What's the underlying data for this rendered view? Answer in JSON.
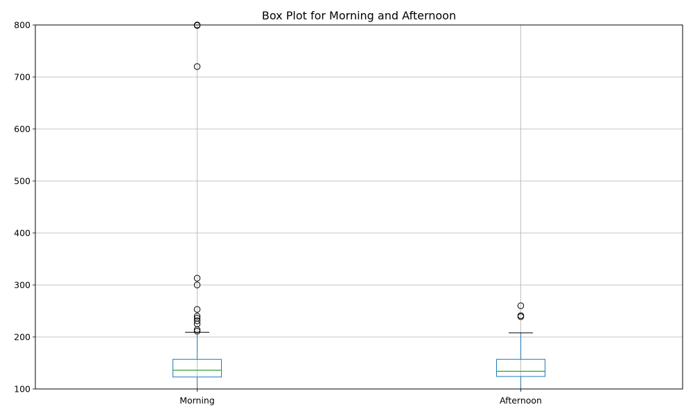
{
  "chart_data": {
    "type": "box",
    "title": "Box Plot for Morning and Afternoon",
    "xlabel": "",
    "ylabel": "",
    "ylim": [
      100,
      800
    ],
    "yticks": [
      100,
      200,
      300,
      400,
      500,
      600,
      700,
      800
    ],
    "grid": true,
    "categories": [
      "Morning",
      "Afternoon"
    ],
    "series": [
      {
        "category": "Morning",
        "q1": 123,
        "median": 136,
        "q3": 157,
        "whisker_low": 100,
        "whisker_high": 209,
        "outliers": [
          211,
          214,
          225,
          231,
          236,
          240,
          253,
          300,
          313,
          720,
          799,
          800
        ]
      },
      {
        "category": "Afternoon",
        "q1": 124,
        "median": 134,
        "q3": 157,
        "whisker_low": 100,
        "whisker_high": 208,
        "outliers": [
          239,
          241,
          260
        ]
      }
    ],
    "colors": {
      "box": "#1f77b4",
      "median": "#2ca02c",
      "whisker_cap": "#000000",
      "grid": "#b0b0b0",
      "outlier_edge": "#000000"
    }
  }
}
